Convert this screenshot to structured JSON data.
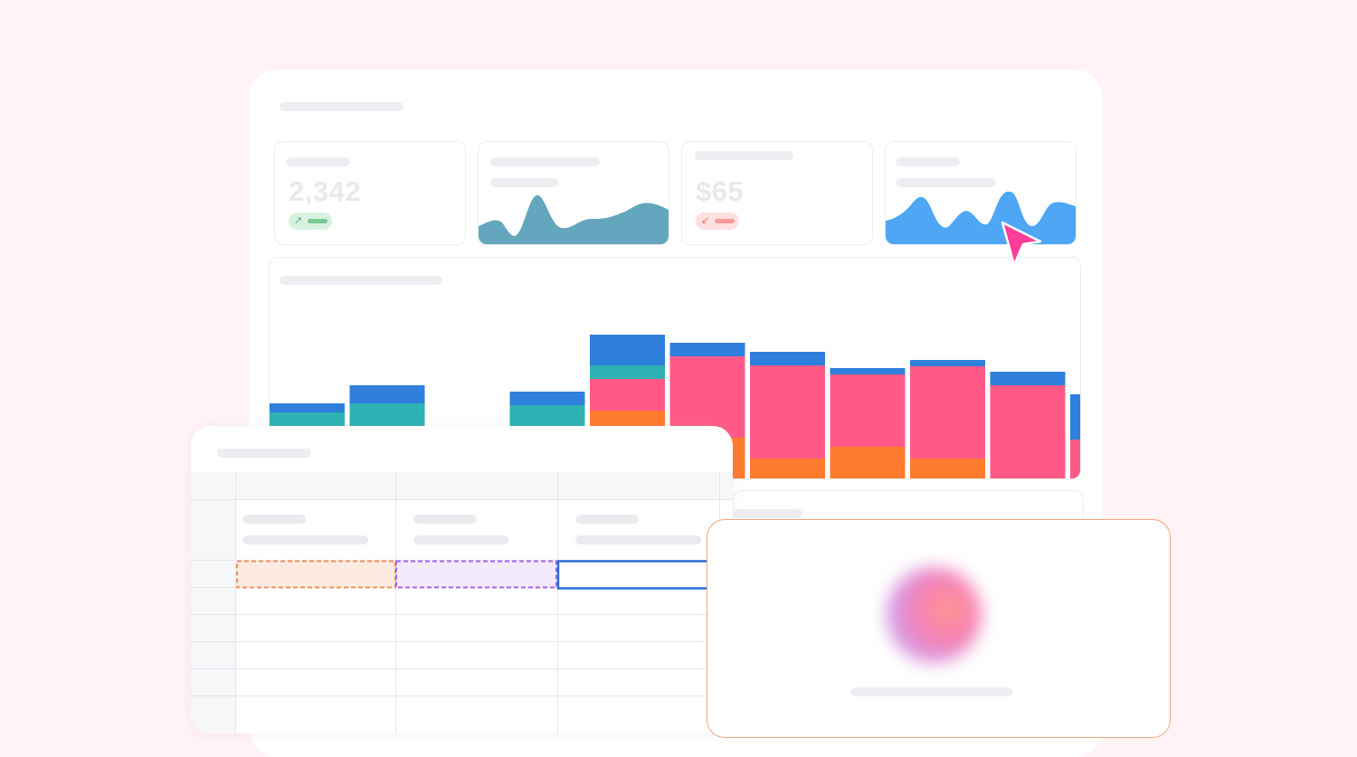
{
  "dashboard": {
    "kpis": [
      {
        "value": "2,342",
        "trend": "up",
        "trend_icon": "arrow-up-right-icon"
      },
      {
        "value": "",
        "sparkline_color": "#64a6bd"
      },
      {
        "value": "$65",
        "trend": "down",
        "trend_icon": "arrow-down-left-icon"
      },
      {
        "value": "",
        "sparkline_color": "#4ea6f5"
      }
    ]
  },
  "chart_data": {
    "type": "bar",
    "stacked": true,
    "categories": [
      "",
      "",
      "",
      "",
      "",
      "",
      "",
      "",
      "",
      "",
      ""
    ],
    "series": [
      {
        "color": "#ff7b2e",
        "values": [
          0,
          0,
          0,
          0,
          75,
          45,
          22,
          35,
          22,
          0,
          0
        ]
      },
      {
        "color": "#ff5a87",
        "values": [
          0,
          0,
          0,
          0,
          35,
          90,
          103,
          80,
          102,
          103,
          43
        ]
      },
      {
        "color": "#2eb1b2",
        "values": [
          73,
          83,
          0,
          81,
          15,
          0,
          0,
          0,
          0,
          0,
          0
        ]
      },
      {
        "color": "#2f7fdc",
        "values": [
          10,
          20,
          0,
          15,
          34,
          15,
          15,
          7,
          7,
          15,
          50
        ]
      }
    ],
    "colors": {
      "orange": "#ff7b2e",
      "pink": "#ff5a87",
      "teal": "#2eb1b2",
      "blue": "#2f7fdc"
    },
    "grid": false,
    "legend": "none"
  },
  "cursor": {
    "icon": "cursor-arrow-icon",
    "color": "#ff3d9a"
  },
  "sheet": {
    "selection_colors": {
      "orange": "#f5905a",
      "purple": "#a460f0",
      "blue": "#2c6ed8"
    }
  },
  "ai_panel": {
    "orb_icon": "ai-orb-icon"
  }
}
